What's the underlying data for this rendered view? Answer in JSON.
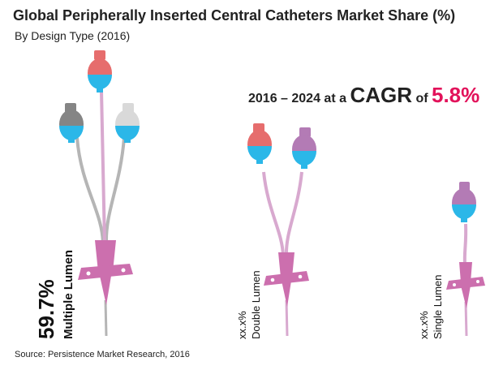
{
  "header": {
    "title": "Global Peripherally Inserted Central Catheters Market Share (%)",
    "subtitle": "By Design Type (2016)"
  },
  "cagr": {
    "prefix": "2016 – 2024 at a ",
    "cagr_word": "CAGR",
    "of_word": " of ",
    "value": "5.8%",
    "value_color": "#e2125a"
  },
  "source": "Source: Persistence Market Research, 2016",
  "colors": {
    "catheter": "#cc6fae",
    "tube": "#d8a9cf",
    "tip": "#2bb7e8",
    "gray_tube": "#b5b5b5",
    "red_cap": "#e66d6d",
    "gray_cap": "#858585",
    "white_cap": "#d9d9d9",
    "purple_cap": "#b37bb5"
  },
  "chart_data": {
    "type": "pictograph",
    "title": "Global Peripherally Inserted Central Catheters Market Share (%)",
    "subtitle": "By Design Type (2016)",
    "categories": [
      "Multiple Lumen",
      "Double Lumen",
      "Single Lumen"
    ],
    "value_labels": [
      "59.7%",
      "xx.x%",
      "xx.x%"
    ],
    "values": [
      59.7,
      null,
      null
    ]
  },
  "icons": [
    "multiple-lumen-catheter-icon",
    "double-lumen-catheter-icon",
    "single-lumen-catheter-icon"
  ]
}
